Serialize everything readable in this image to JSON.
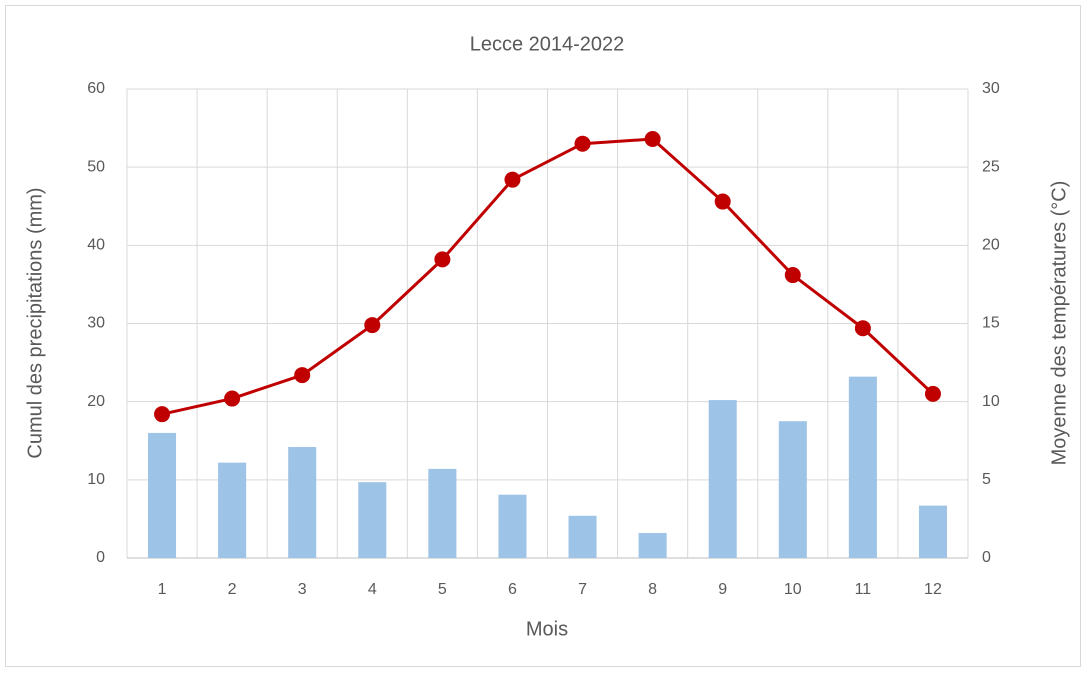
{
  "chart_data": {
    "type": "bar_line",
    "title": "Lecce 2014-2022",
    "x_label": "Mois",
    "y_label": "Cumul des precipitations (mm)",
    "y2_label": "Moyenne des températures (°C)",
    "categories": [
      "1",
      "2",
      "3",
      "4",
      "5",
      "6",
      "7",
      "8",
      "9",
      "10",
      "11",
      "12"
    ],
    "series": [
      {
        "name": "Cumul des precipitations (mm)",
        "type": "bar",
        "color": "#9dc3e6",
        "values": [
          16.0,
          12.2,
          14.2,
          9.7,
          11.4,
          8.1,
          5.4,
          3.2,
          20.2,
          17.5,
          23.2,
          6.7
        ]
      },
      {
        "name": "Moyenne des températures (°C)",
        "type": "line",
        "axis": "y2",
        "color": "#c00000",
        "values": [
          9.2,
          10.2,
          11.7,
          14.9,
          19.1,
          24.2,
          26.5,
          26.8,
          22.8,
          18.1,
          14.7,
          10.5
        ]
      }
    ],
    "ylim": [
      0,
      60
    ],
    "yticks": [
      0,
      10,
      20,
      30,
      40,
      50,
      60
    ],
    "y2lim": [
      0,
      30
    ],
    "y2ticks": [
      0,
      5,
      10,
      15,
      20,
      25,
      30
    ],
    "grid": true
  }
}
